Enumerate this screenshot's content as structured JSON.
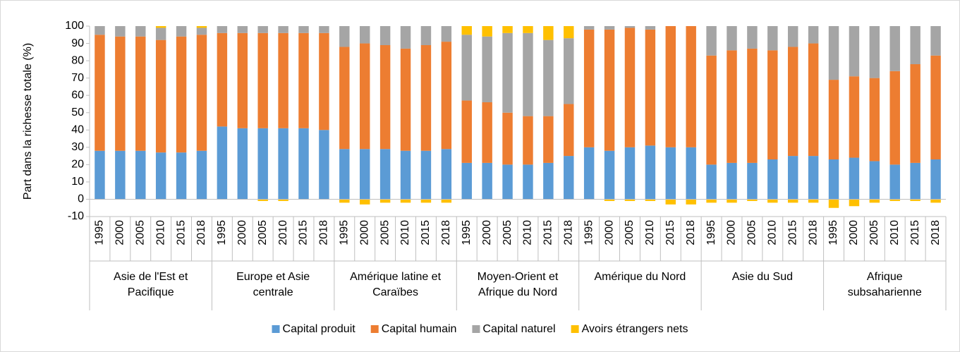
{
  "chart_data": {
    "type": "bar",
    "stacked": true,
    "y_label": "Part dans la richesse totale (%)",
    "groups": [
      {
        "name": "Asie de l'Est et Pacifique",
        "categories": [
          "1995",
          "2000",
          "2005",
          "2010",
          "2015",
          "2018"
        ]
      },
      {
        "name": "Europe et Asie centrale",
        "categories": [
          "1995",
          "2000",
          "2005",
          "2010",
          "2015",
          "2018"
        ]
      },
      {
        "name": "Amérique latine et Caraïbes",
        "categories": [
          "1995",
          "2000",
          "2005",
          "2010",
          "2015",
          "2018"
        ]
      },
      {
        "name": "Moyen-Orient et Afrique du Nord",
        "categories": [
          "1995",
          "2000",
          "2005",
          "2010",
          "2015",
          "2018"
        ]
      },
      {
        "name": "Amérique du Nord",
        "categories": [
          "1995",
          "2000",
          "2005",
          "2010",
          "2015",
          "2018"
        ]
      },
      {
        "name": "Asie du Sud",
        "categories": [
          "1995",
          "2000",
          "2005",
          "2010",
          "2015",
          "2018"
        ]
      },
      {
        "name": "Afrique subsaharienne",
        "categories": [
          "1995",
          "2000",
          "2005",
          "2010",
          "2015",
          "2018"
        ]
      }
    ],
    "series": [
      {
        "name": "Capital produit",
        "color": "#5b9bd5",
        "values": [
          28,
          28,
          28,
          27,
          27,
          28,
          42,
          41,
          41,
          41,
          41,
          40,
          29,
          29,
          29,
          28,
          28,
          29,
          21,
          21,
          20,
          20,
          21,
          25,
          30,
          28,
          30,
          31,
          30,
          30,
          20,
          21,
          21,
          23,
          25,
          25,
          23,
          24,
          22,
          20,
          21,
          23
        ]
      },
      {
        "name": "Capital humain",
        "color": "#ed7d31",
        "values": [
          67,
          66,
          66,
          65,
          67,
          67,
          54,
          55,
          55,
          55,
          55,
          56,
          59,
          61,
          60,
          59,
          61,
          62,
          36,
          35,
          30,
          28,
          27,
          30,
          68,
          70,
          69,
          67,
          70,
          70,
          63,
          65,
          66,
          63,
          63,
          65,
          46,
          47,
          48,
          54,
          57,
          60
        ]
      },
      {
        "name": "Capital naturel",
        "color": "#a5a5a5",
        "values": [
          5,
          6,
          6,
          7,
          6,
          4,
          4,
          4,
          4,
          4,
          4,
          4,
          12,
          10,
          11,
          13,
          11,
          9,
          38,
          38,
          46,
          48,
          44,
          38,
          2,
          2,
          1,
          2,
          0,
          0,
          17,
          14,
          13,
          14,
          12,
          10,
          31,
          29,
          30,
          26,
          22,
          17
        ]
      },
      {
        "name": "Avoirs étrangers nets",
        "color": "#ffc000",
        "values": [
          0,
          0,
          0,
          1,
          0,
          1,
          0,
          0,
          -1,
          -1,
          0,
          0,
          -2,
          -3,
          -2,
          -2,
          -2,
          -2,
          5,
          6,
          4,
          4,
          8,
          7,
          0,
          -1,
          -1,
          -1,
          -3,
          -3,
          -2,
          -2,
          -1,
          -2,
          -2,
          -2,
          -5,
          -4,
          -2,
          -1,
          -1,
          -2
        ]
      }
    ],
    "ylim": [
      -10,
      100
    ],
    "yticks": [
      -10,
      0,
      10,
      20,
      30,
      40,
      50,
      60,
      70,
      80,
      90,
      100
    ],
    "legend": "bottom"
  }
}
